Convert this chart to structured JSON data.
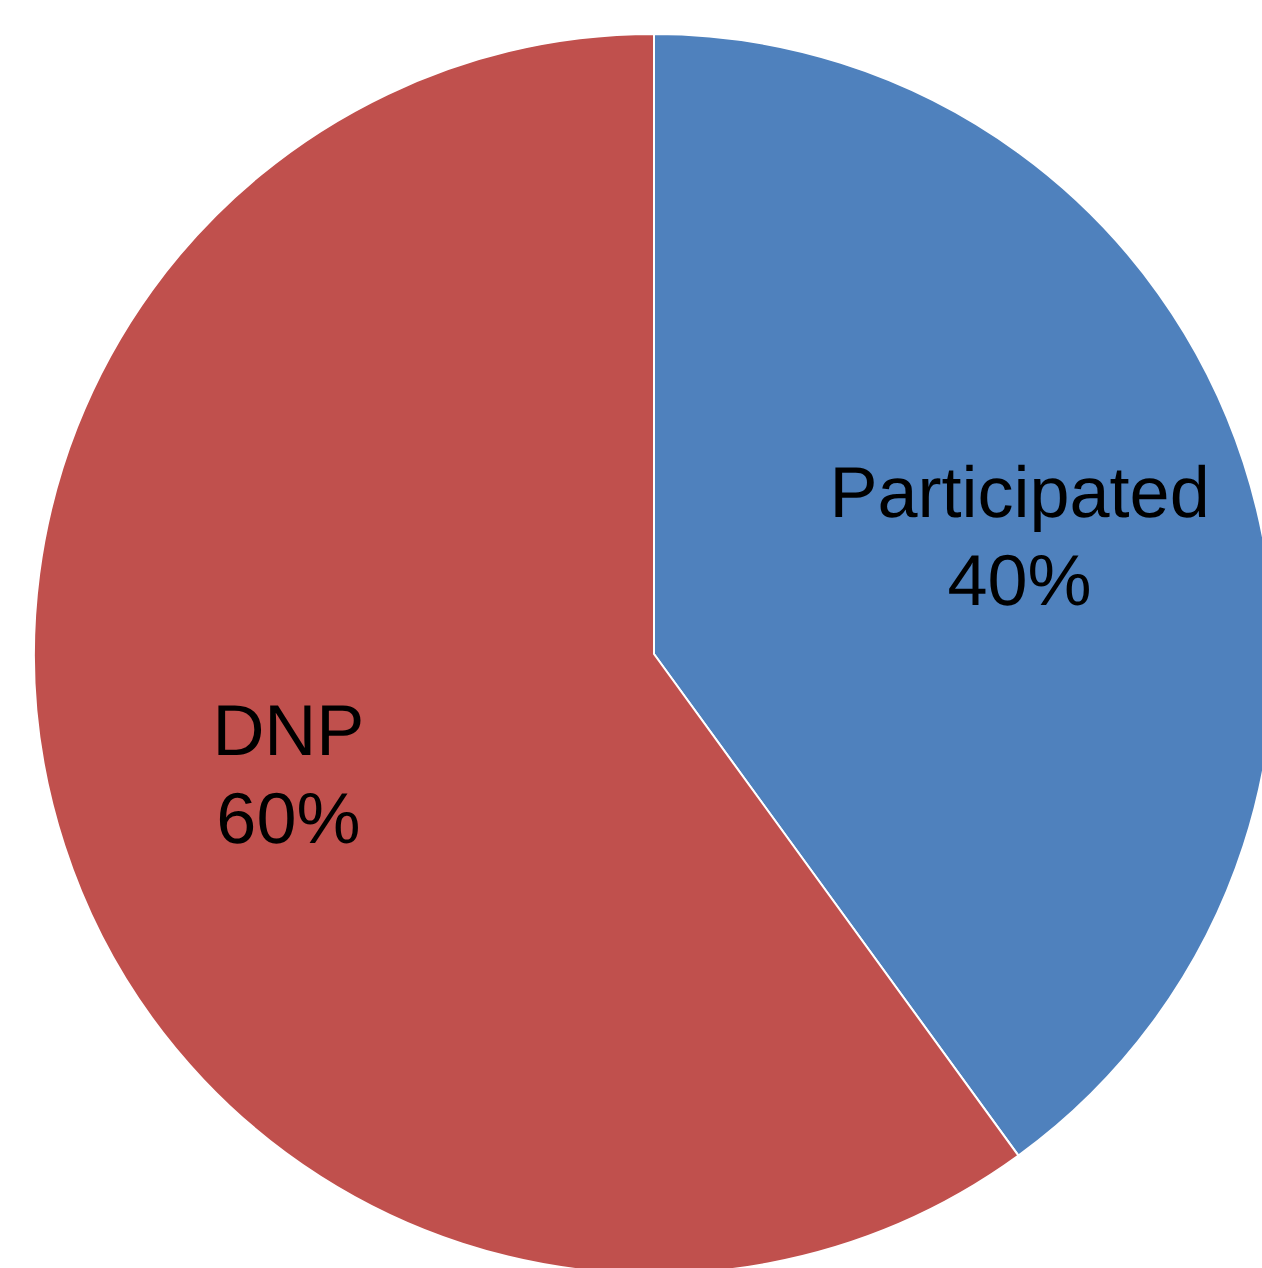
{
  "chart_data": {
    "type": "pie",
    "categories": [
      "Participated",
      "DNP"
    ],
    "values": [
      40,
      60
    ],
    "colors": [
      "#4f81bd",
      "#c0504d"
    ],
    "value_labels": [
      "40%",
      "60%"
    ]
  }
}
